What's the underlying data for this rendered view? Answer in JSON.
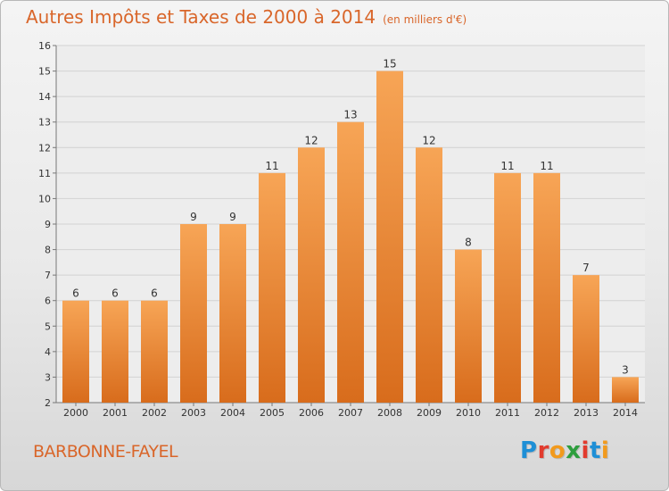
{
  "header": {
    "title": "Autres Impôts et Taxes de 2000 à 2014",
    "unit": "(en milliers d'€)"
  },
  "footer": {
    "place": "BARBONNE-FAYEL",
    "logo": "Proxiti"
  },
  "colors": {
    "accent": "#d9662a",
    "bar_top": "#f7a556",
    "bar_bottom": "#d86c1c"
  },
  "chart_data": {
    "type": "bar",
    "categories": [
      "2000",
      "2001",
      "2002",
      "2003",
      "2004",
      "2005",
      "2006",
      "2007",
      "2008",
      "2009",
      "2010",
      "2011",
      "2012",
      "2013",
      "2014"
    ],
    "values": [
      6,
      6,
      6,
      9,
      9,
      11,
      12,
      13,
      15,
      12,
      8,
      11,
      11,
      7,
      3
    ],
    "title": "Autres Impôts et Taxes de 2000 à 2014",
    "ylim": [
      2,
      16
    ],
    "yticks": [
      2,
      3,
      4,
      5,
      6,
      7,
      8,
      9,
      10,
      11,
      12,
      13,
      14,
      15,
      16
    ],
    "grid": true
  }
}
